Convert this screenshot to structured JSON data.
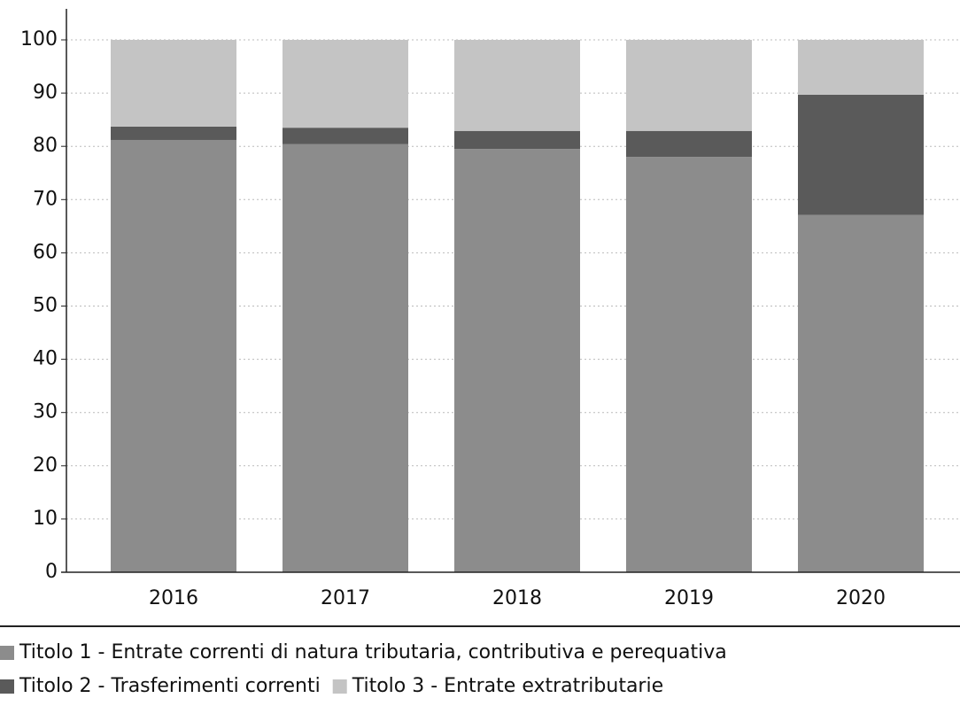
{
  "chart_data": {
    "type": "stacked_bar",
    "categories": [
      "2016",
      "2017",
      "2018",
      "2019",
      "2020"
    ],
    "series": [
      {
        "name": "Titolo 1 - Entrate correnti di natura tributaria, contributiva e perequativa",
        "color": "#8c8c8c",
        "values": [
          81.2,
          80.4,
          79.5,
          78.0,
          67.1
        ]
      },
      {
        "name": "Titolo 2 - Trasferimenti correnti",
        "color": "#5a5a5a",
        "values": [
          2.5,
          3.1,
          3.4,
          4.9,
          22.6
        ]
      },
      {
        "name": "Titolo 3 - Entrate extratributarie",
        "color": "#c4c4c4",
        "values": [
          16.3,
          16.5,
          17.1,
          17.1,
          10.3
        ]
      }
    ],
    "ylim": [
      0,
      100
    ],
    "yticks": [
      0,
      10,
      20,
      30,
      40,
      50,
      60,
      70,
      80,
      90,
      100
    ],
    "grid": true,
    "legend": "bottom"
  }
}
